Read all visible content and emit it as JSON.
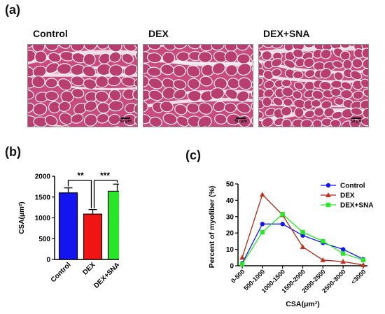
{
  "panels": {
    "a": "(a)",
    "b": "(b)",
    "c": "(c)"
  },
  "images": [
    {
      "title": "Control",
      "scale": "50 μm"
    },
    {
      "title": "DEX",
      "scale": "50 μm"
    },
    {
      "title": "DEX+SNA",
      "scale": "50 μm"
    }
  ],
  "colors": {
    "control": "#1414f0",
    "dex": "#f01414",
    "dex_sna": "#28e628",
    "dex_line": "#a02818",
    "tissue": "#c84a7e"
  },
  "chart_data": [
    {
      "type": "bar",
      "categories": [
        "Control",
        "DEX",
        "DEX+SNA"
      ],
      "values": [
        1600,
        1090,
        1640
      ],
      "errors": [
        120,
        110,
        170
      ],
      "ylabel": "CSA(μm²)",
      "ylim": [
        0,
        2000
      ],
      "yticks": [
        0,
        500,
        1000,
        1500,
        2000
      ],
      "significance": [
        {
          "between": [
            "Control",
            "DEX"
          ],
          "label": "**"
        },
        {
          "between": [
            "DEX",
            "DEX+SNA"
          ],
          "label": "***"
        }
      ]
    },
    {
      "type": "line",
      "categories": [
        "0-500",
        "500-1000",
        "1000-1500",
        "1500-2000",
        "2000-2500",
        "2500-3000",
        "<3000"
      ],
      "series": [
        {
          "name": "Control",
          "values": [
            1.5,
            25.5,
            25.5,
            18.5,
            14,
            10,
            4
          ]
        },
        {
          "name": "DEX",
          "values": [
            5,
            43.5,
            31,
            11.5,
            3.5,
            2.5,
            0.5
          ]
        },
        {
          "name": "DEX+SNA",
          "values": [
            1,
            20.5,
            31.5,
            20.5,
            15,
            7.5,
            3.5
          ]
        }
      ],
      "xlabel": "CSA(μm²)",
      "ylabel": "Percent of myofiber (%)",
      "ylim": [
        0,
        50
      ],
      "yticks": [
        0,
        10,
        20,
        30,
        40,
        50
      ],
      "legend": "top-right"
    }
  ]
}
